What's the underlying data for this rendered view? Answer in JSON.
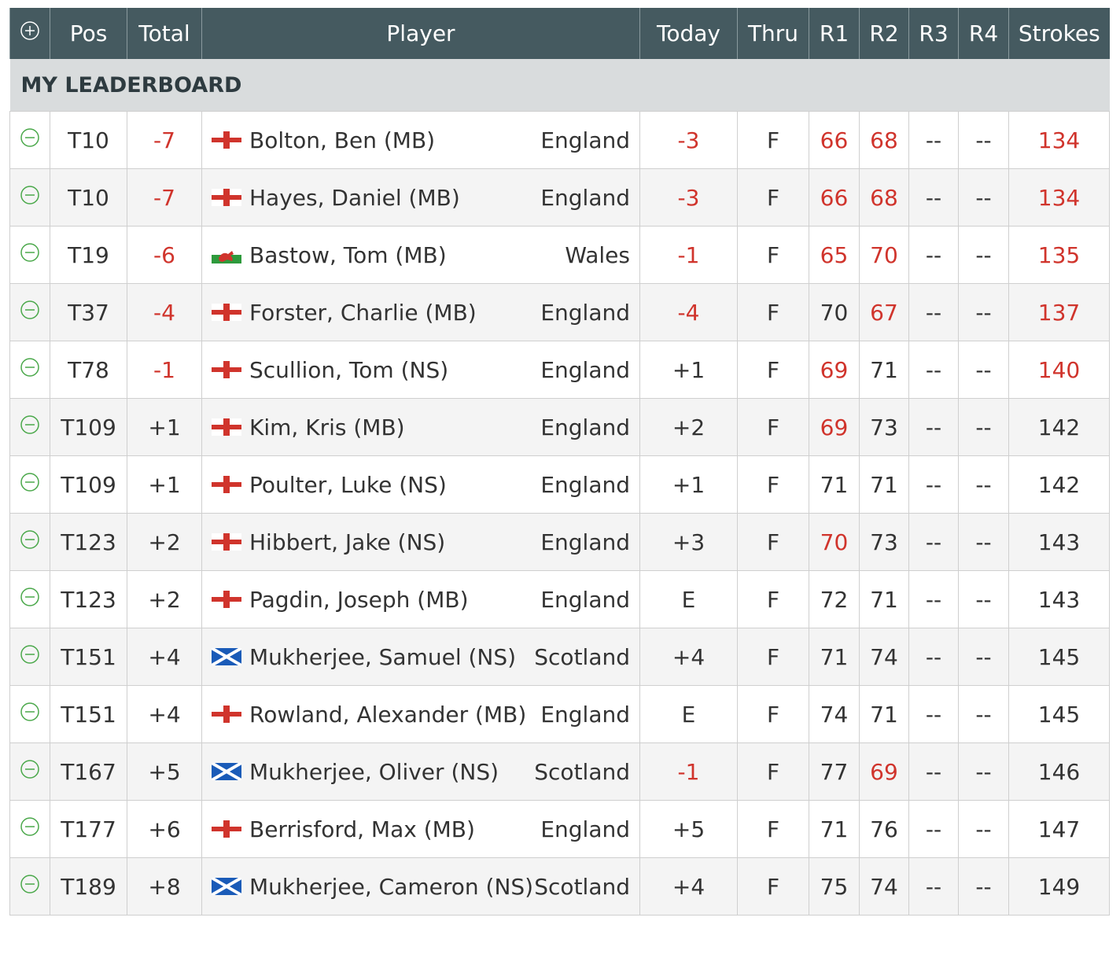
{
  "headers": [
    "Pos",
    "Total",
    "Player",
    "Today",
    "Thru",
    "R1",
    "R2",
    "R3",
    "R4",
    "Strokes"
  ],
  "section_title": "MY LEADERBOARD",
  "highlight_color": "#d0342c",
  "rows": [
    {
      "pos": "T10",
      "total": "-7",
      "player": "Bolton, Ben (MB)",
      "country": "England",
      "today": "-3",
      "thru": "F",
      "r1": "66",
      "r2": "68",
      "r3": "--",
      "r4": "--",
      "strokes": "134",
      "red": [
        "total",
        "today",
        "r1",
        "r2",
        "strokes"
      ]
    },
    {
      "pos": "T10",
      "total": "-7",
      "player": "Hayes, Daniel (MB)",
      "country": "England",
      "today": "-3",
      "thru": "F",
      "r1": "66",
      "r2": "68",
      "r3": "--",
      "r4": "--",
      "strokes": "134",
      "red": [
        "total",
        "today",
        "r1",
        "r2",
        "strokes"
      ]
    },
    {
      "pos": "T19",
      "total": "-6",
      "player": "Bastow, Tom (MB)",
      "country": "Wales",
      "today": "-1",
      "thru": "F",
      "r1": "65",
      "r2": "70",
      "r3": "--",
      "r4": "--",
      "strokes": "135",
      "red": [
        "total",
        "today",
        "r1",
        "r2",
        "strokes"
      ]
    },
    {
      "pos": "T37",
      "total": "-4",
      "player": "Forster, Charlie (MB)",
      "country": "England",
      "today": "-4",
      "thru": "F",
      "r1": "70",
      "r2": "67",
      "r3": "--",
      "r4": "--",
      "strokes": "137",
      "red": [
        "total",
        "today",
        "r2",
        "strokes"
      ]
    },
    {
      "pos": "T78",
      "total": "-1",
      "player": "Scullion, Tom (NS)",
      "country": "England",
      "today": "+1",
      "thru": "F",
      "r1": "69",
      "r2": "71",
      "r3": "--",
      "r4": "--",
      "strokes": "140",
      "red": [
        "total",
        "r1",
        "strokes"
      ]
    },
    {
      "pos": "T109",
      "total": "+1",
      "player": "Kim, Kris (MB)",
      "country": "England",
      "today": "+2",
      "thru": "F",
      "r1": "69",
      "r2": "73",
      "r3": "--",
      "r4": "--",
      "strokes": "142",
      "red": [
        "r1"
      ]
    },
    {
      "pos": "T109",
      "total": "+1",
      "player": "Poulter, Luke (NS)",
      "country": "England",
      "today": "+1",
      "thru": "F",
      "r1": "71",
      "r2": "71",
      "r3": "--",
      "r4": "--",
      "strokes": "142",
      "red": []
    },
    {
      "pos": "T123",
      "total": "+2",
      "player": "Hibbert, Jake (NS)",
      "country": "England",
      "today": "+3",
      "thru": "F",
      "r1": "70",
      "r2": "73",
      "r3": "--",
      "r4": "--",
      "strokes": "143",
      "red": [
        "r1"
      ]
    },
    {
      "pos": "T123",
      "total": "+2",
      "player": "Pagdin, Joseph (MB)",
      "country": "England",
      "today": "E",
      "thru": "F",
      "r1": "72",
      "r2": "71",
      "r3": "--",
      "r4": "--",
      "strokes": "143",
      "red": []
    },
    {
      "pos": "T151",
      "total": "+4",
      "player": "Mukherjee, Samuel (NS)",
      "country": "Scotland",
      "today": "+4",
      "thru": "F",
      "r1": "71",
      "r2": "74",
      "r3": "--",
      "r4": "--",
      "strokes": "145",
      "red": []
    },
    {
      "pos": "T151",
      "total": "+4",
      "player": "Rowland, Alexander (MB)",
      "country": "England",
      "today": "E",
      "thru": "F",
      "r1": "74",
      "r2": "71",
      "r3": "--",
      "r4": "--",
      "strokes": "145",
      "red": []
    },
    {
      "pos": "T167",
      "total": "+5",
      "player": "Mukherjee, Oliver (NS)",
      "country": "Scotland",
      "today": "-1",
      "thru": "F",
      "r1": "77",
      "r2": "69",
      "r3": "--",
      "r4": "--",
      "strokes": "146",
      "red": [
        "today",
        "r2"
      ]
    },
    {
      "pos": "T177",
      "total": "+6",
      "player": "Berrisford, Max (MB)",
      "country": "England",
      "today": "+5",
      "thru": "F",
      "r1": "71",
      "r2": "76",
      "r3": "--",
      "r4": "--",
      "strokes": "147",
      "red": []
    },
    {
      "pos": "T189",
      "total": "+8",
      "player": "Mukherjee, Cameron (NS)",
      "country": "Scotland",
      "today": "+4",
      "thru": "F",
      "r1": "75",
      "r2": "74",
      "r3": "--",
      "r4": "--",
      "strokes": "149",
      "red": []
    }
  ]
}
